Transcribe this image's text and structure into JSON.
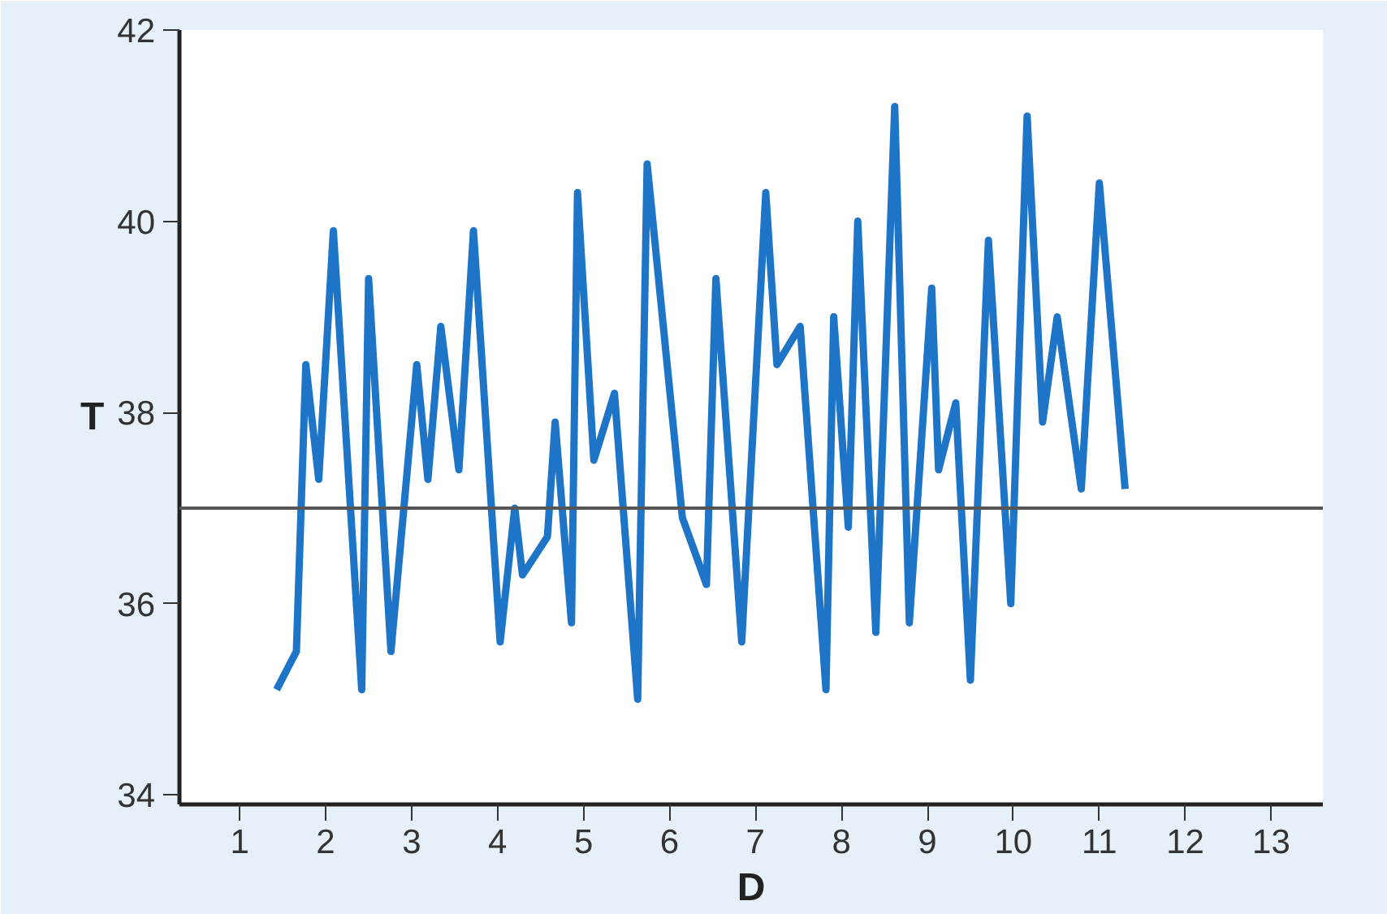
{
  "chart_data": {
    "type": "line",
    "xlabel": "D",
    "ylabel": "T",
    "xlim": [
      0.3,
      13.6
    ],
    "ylim": [
      33.9,
      42
    ],
    "xticks": [
      1,
      2,
      3,
      4,
      5,
      6,
      7,
      8,
      9,
      10,
      11,
      12,
      13
    ],
    "yticks": [
      34,
      36,
      38,
      40,
      42
    ],
    "grid": false,
    "marker": "none",
    "line_style": "solid",
    "ref_lines": [
      {
        "axis": "y",
        "value": 37,
        "color": "#555555"
      }
    ],
    "series": [
      {
        "color": "#1e74c6",
        "x": [
          1.43,
          1.66,
          1.77,
          1.92,
          2.09,
          2.42,
          2.5,
          2.76,
          3.06,
          3.19,
          3.34,
          3.55,
          3.72,
          4.03,
          4.2,
          4.29,
          4.58,
          4.67,
          4.86,
          4.93,
          5.12,
          5.36,
          5.63,
          5.74,
          6.15,
          6.43,
          6.54,
          6.84,
          7.12,
          7.25,
          7.52,
          7.82,
          7.91,
          8.08,
          8.19,
          8.4,
          8.62,
          8.79,
          9.05,
          9.13,
          9.33,
          9.5,
          9.71,
          9.97,
          10.16,
          10.34,
          10.51,
          10.79,
          11.0,
          11.3
        ],
        "values": [
          35.1,
          35.5,
          38.5,
          37.3,
          39.9,
          35.1,
          39.4,
          35.5,
          38.5,
          37.3,
          38.9,
          37.4,
          39.9,
          35.6,
          37.0,
          36.3,
          36.7,
          37.9,
          35.8,
          40.3,
          37.5,
          38.2,
          35.0,
          40.6,
          36.9,
          36.2,
          39.4,
          35.6,
          40.3,
          38.5,
          38.9,
          35.1,
          39.0,
          36.8,
          40.0,
          35.7,
          41.2,
          35.8,
          39.3,
          37.4,
          38.1,
          35.2,
          39.8,
          36.0,
          41.1,
          37.9,
          39.0,
          37.2,
          40.4,
          37.2
        ]
      }
    ]
  }
}
